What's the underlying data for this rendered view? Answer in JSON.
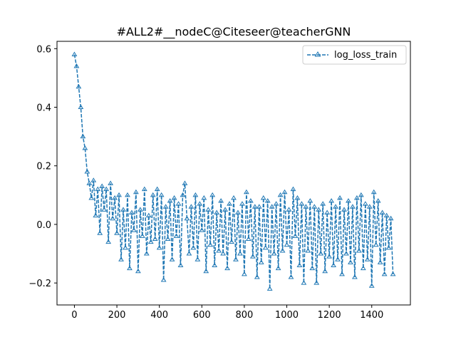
{
  "chart_data": {
    "type": "line",
    "title": "#ALL2#__nodeC@Citeseer@teacherGNN",
    "xlabel": "",
    "ylabel": "",
    "xlim": [
      -82,
      1582
    ],
    "ylim": [
      -0.275,
      0.625
    ],
    "xticks": [
      0,
      200,
      400,
      600,
      800,
      1000,
      1200,
      1400
    ],
    "xtick_labels": [
      "0",
      "200",
      "400",
      "600",
      "800",
      "1000",
      "1200",
      "1400"
    ],
    "yticks": [
      -0.2,
      0.0,
      0.2,
      0.4,
      0.6
    ],
    "ytick_labels": [
      "−0.2",
      "0.0",
      "0.2",
      "0.4",
      "0.6"
    ],
    "grid": false,
    "legend_position": "upper right",
    "series": [
      {
        "name": "log_loss_train",
        "color": "#1f77b4",
        "linestyle": "dashed",
        "marker": "tri_up",
        "x": [
          0,
          10,
          20,
          30,
          40,
          50,
          60,
          70,
          80,
          90,
          100,
          110,
          120,
          130,
          140,
          150,
          160,
          170,
          180,
          190,
          200,
          210,
          220,
          230,
          240,
          250,
          260,
          270,
          280,
          290,
          300,
          310,
          320,
          330,
          340,
          350,
          360,
          370,
          380,
          390,
          400,
          410,
          420,
          430,
          440,
          450,
          460,
          470,
          480,
          490,
          500,
          510,
          520,
          530,
          540,
          550,
          560,
          570,
          580,
          590,
          600,
          610,
          620,
          630,
          640,
          650,
          660,
          670,
          680,
          690,
          700,
          710,
          720,
          730,
          740,
          750,
          760,
          770,
          780,
          790,
          800,
          810,
          820,
          830,
          840,
          850,
          860,
          870,
          880,
          890,
          900,
          910,
          920,
          930,
          940,
          950,
          960,
          970,
          980,
          990,
          1000,
          1010,
          1020,
          1030,
          1040,
          1050,
          1060,
          1070,
          1080,
          1090,
          1100,
          1110,
          1120,
          1130,
          1140,
          1150,
          1160,
          1170,
          1180,
          1190,
          1200,
          1210,
          1220,
          1230,
          1240,
          1250,
          1260,
          1270,
          1280,
          1290,
          1300,
          1310,
          1320,
          1330,
          1340,
          1350,
          1360,
          1370,
          1380,
          1390,
          1400,
          1410,
          1420,
          1430,
          1440,
          1450,
          1460,
          1470,
          1480,
          1490,
          1500
        ],
        "values": [
          0.58,
          0.54,
          0.47,
          0.4,
          0.3,
          0.26,
          0.18,
          0.14,
          0.09,
          0.15,
          0.03,
          0.12,
          -0.03,
          0.13,
          0.05,
          0.12,
          -0.06,
          0.14,
          0.02,
          0.09,
          -0.03,
          0.1,
          -0.12,
          0.05,
          -0.08,
          0.1,
          -0.15,
          0.04,
          -0.02,
          0.11,
          -0.16,
          0.05,
          -0.04,
          0.12,
          -0.1,
          0.03,
          -0.06,
          0.1,
          -0.05,
          0.12,
          -0.08,
          0.1,
          -0.19,
          0.06,
          -0.05,
          0.08,
          -0.12,
          0.09,
          -0.04,
          0.07,
          -0.14,
          0.1,
          0.14,
          0.02,
          -0.1,
          0.06,
          -0.08,
          0.1,
          -0.12,
          0.07,
          -0.02,
          0.09,
          -0.16,
          0.05,
          -0.07,
          0.1,
          -0.14,
          0.04,
          -0.09,
          0.08,
          -0.1,
          0.05,
          -0.15,
          0.07,
          -0.06,
          0.09,
          -0.12,
          0.04,
          -0.1,
          0.07,
          -0.17,
          0.11,
          -0.05,
          0.08,
          -0.11,
          0.06,
          -0.18,
          0.06,
          -0.13,
          0.09,
          -0.08,
          0.08,
          -0.22,
          0.06,
          -0.1,
          0.07,
          -0.15,
          0.1,
          -0.09,
          0.11,
          -0.07,
          0.05,
          -0.18,
          0.12,
          -0.04,
          0.09,
          -0.14,
          0.07,
          -0.2,
          0.06,
          -0.09,
          0.08,
          -0.15,
          0.06,
          -0.2,
          0.05,
          -0.1,
          0.07,
          -0.16,
          0.04,
          -0.11,
          0.08,
          -0.14,
          0.06,
          -0.12,
          0.09,
          -0.17,
          0.05,
          -0.1,
          0.08,
          -0.13,
          0.06,
          -0.18,
          0.09,
          -0.09,
          0.1,
          -0.15,
          0.07,
          -0.12,
          0.06,
          -0.21,
          0.11,
          -0.07,
          0.08,
          -0.13,
          0.04,
          -0.17,
          0.03,
          -0.08,
          0.02,
          -0.17
        ]
      }
    ]
  }
}
